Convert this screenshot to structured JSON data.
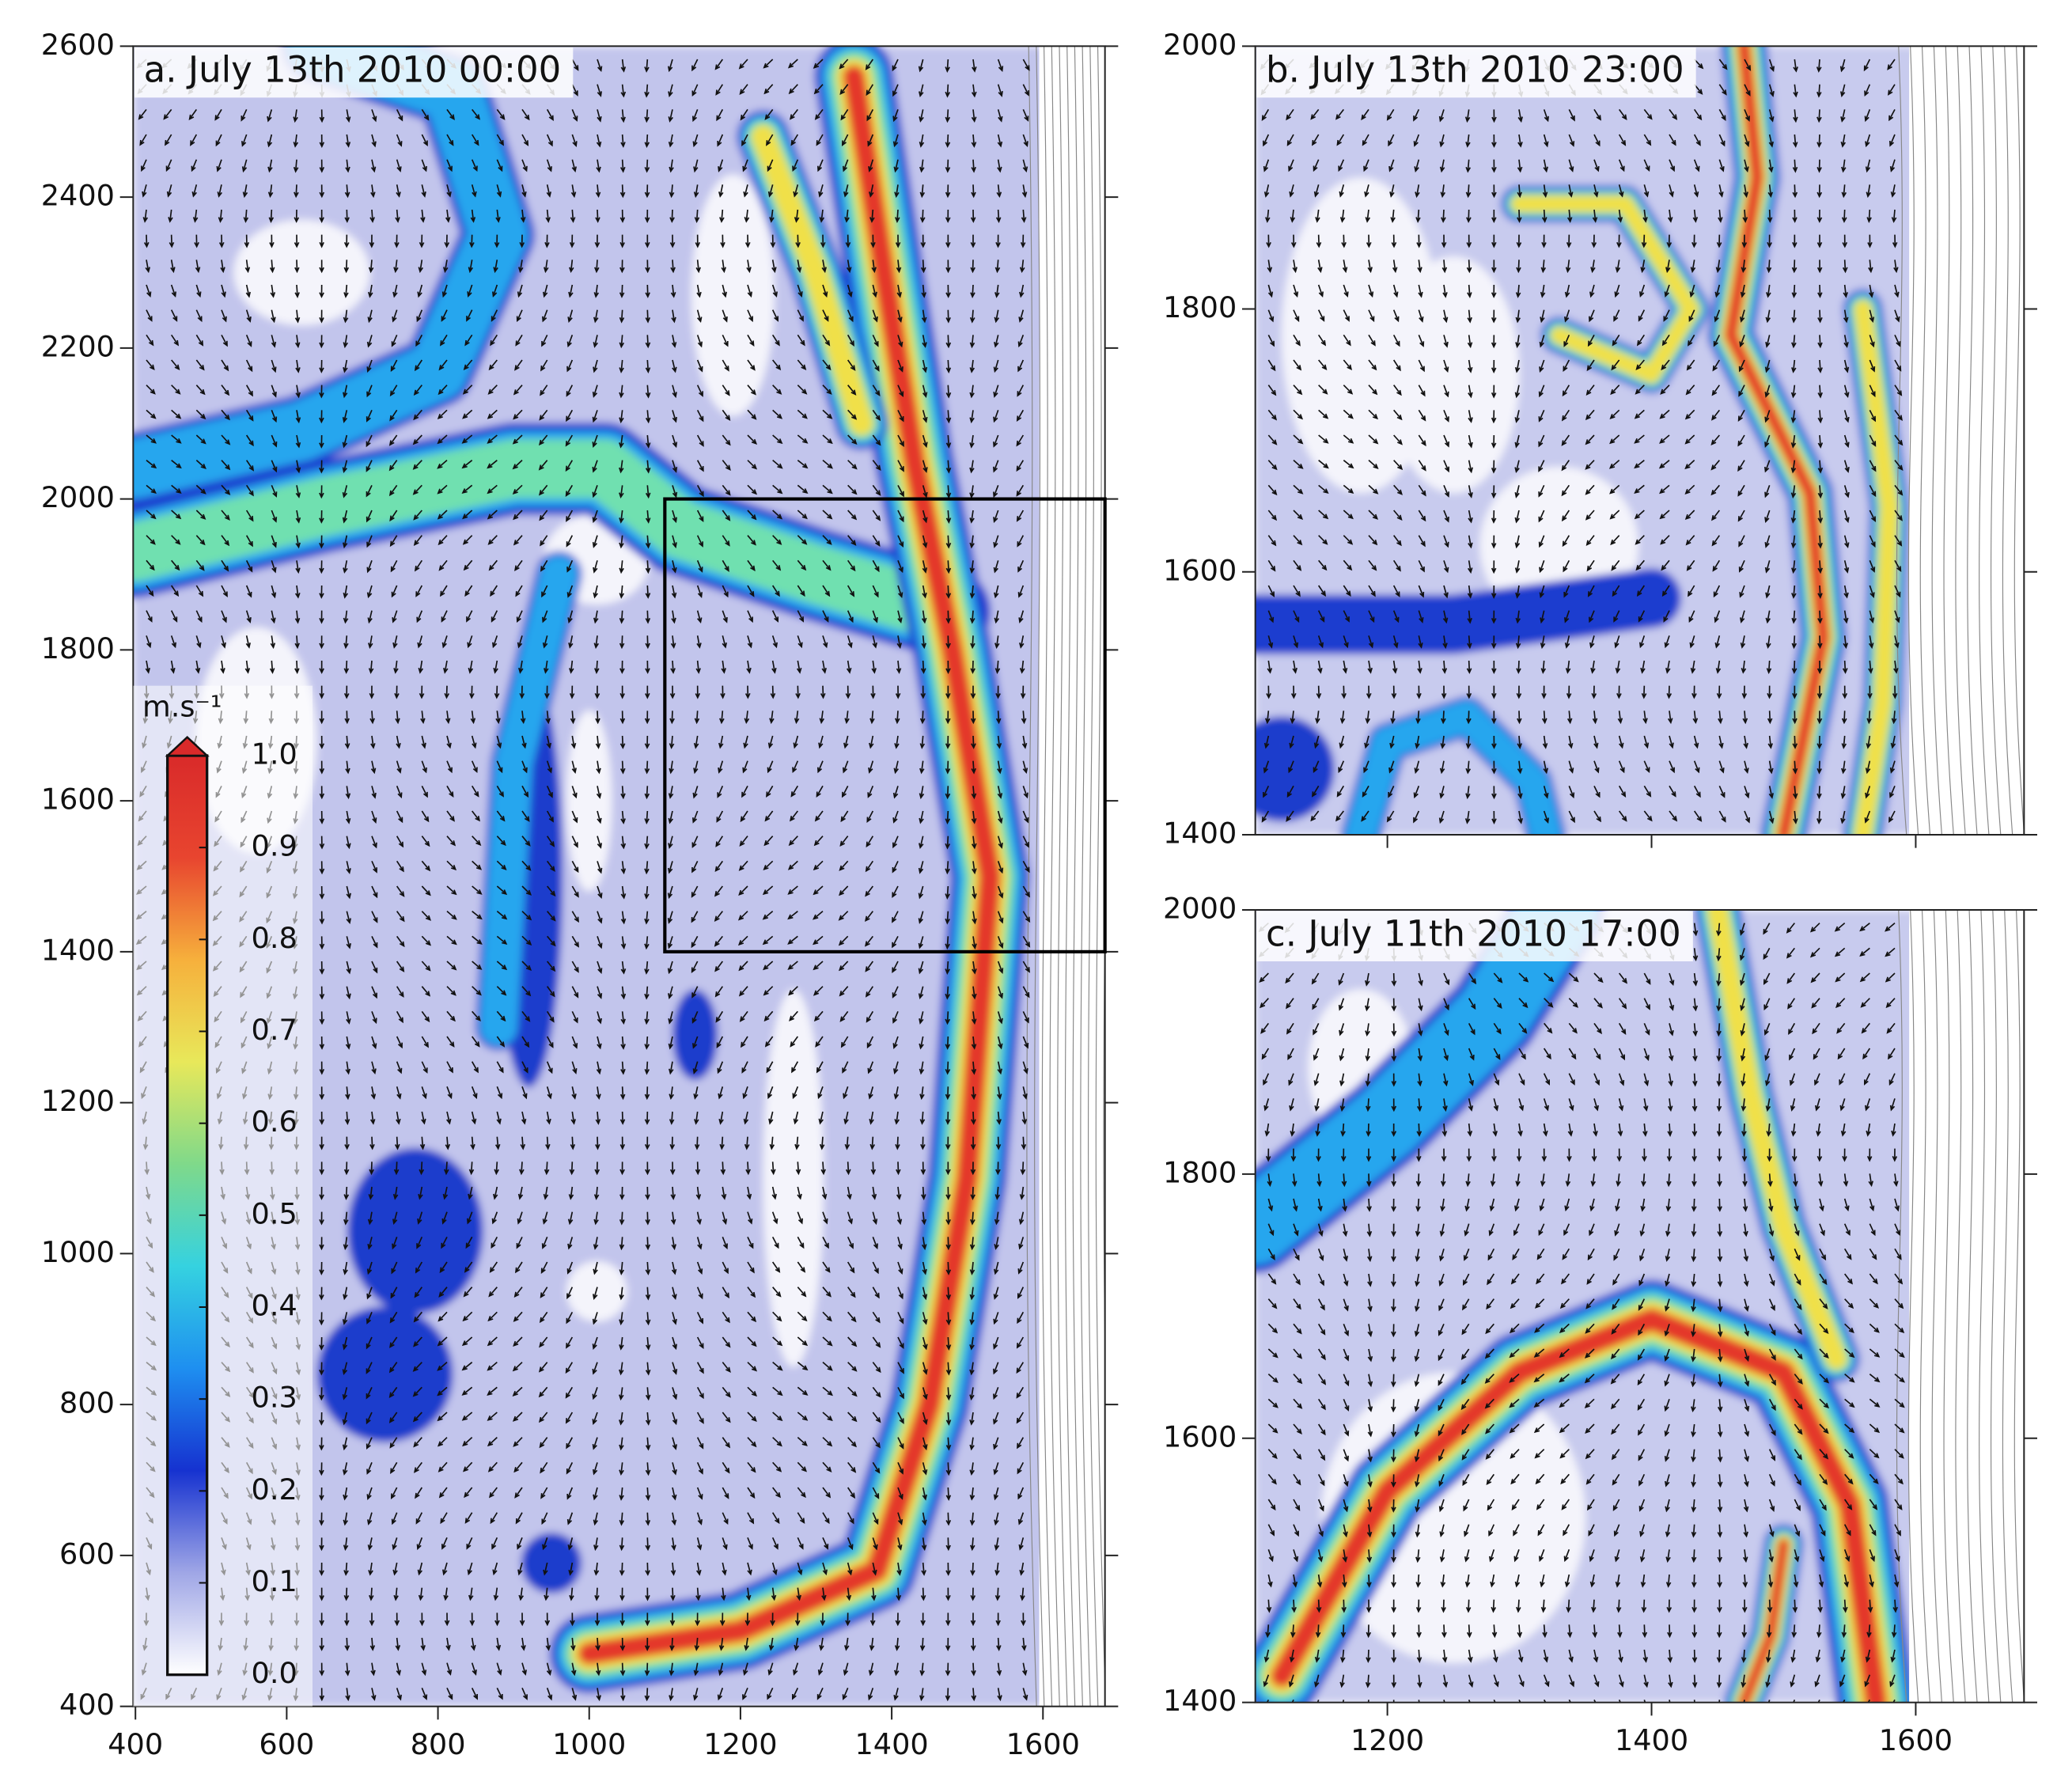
{
  "chart_data": [
    {
      "type": "vector-field",
      "title": "a. July 13th 2010 00:00",
      "xlim": [
        397,
        1682
      ],
      "ylim": [
        400,
        2600
      ],
      "xticks": [
        400,
        600,
        800,
        1000,
        1200,
        1400,
        1600
      ],
      "yticks": [
        400,
        600,
        800,
        1000,
        1200,
        1400,
        1600,
        1800,
        2000,
        2200,
        2400,
        2600
      ]
    },
    {
      "type": "vector-field",
      "title": "b. July 13th 2010 23:00",
      "xlim": [
        1100,
        1682
      ],
      "ylim": [
        1400,
        2000
      ],
      "xticks": [
        1200,
        1400,
        1600
      ],
      "yticks": [
        1400,
        1600,
        1800,
        2000
      ],
      "xticklabels": false
    },
    {
      "type": "vector-field",
      "title": "c. July 11th 2010 17:00",
      "xlim": [
        1100,
        1682
      ],
      "ylim": [
        1400,
        2000
      ],
      "xticks": [
        1200,
        1400,
        1600
      ],
      "yticks": [
        1400,
        1600,
        1800,
        2000
      ],
      "xticklabels": true
    }
  ],
  "colorbar": {
    "label": "m.s⁻¹",
    "lim": [
      0,
      1
    ],
    "ticks": [
      {
        "value": 0,
        "label": "0.0"
      },
      0.1,
      0.2,
      0.3,
      0.4,
      0.5,
      0.6,
      0.7,
      0.8,
      0.9,
      {
        "value": 1,
        "label": "1.0"
      }
    ],
    "colors": [
      "#ffffff",
      "#9fa6e6",
      "#1632d0",
      "#1e8ff0",
      "#35d2e0",
      "#7fd98a",
      "#e8e85a",
      "#f6b03c",
      "#e8452f",
      "#d92a2a"
    ]
  }
}
